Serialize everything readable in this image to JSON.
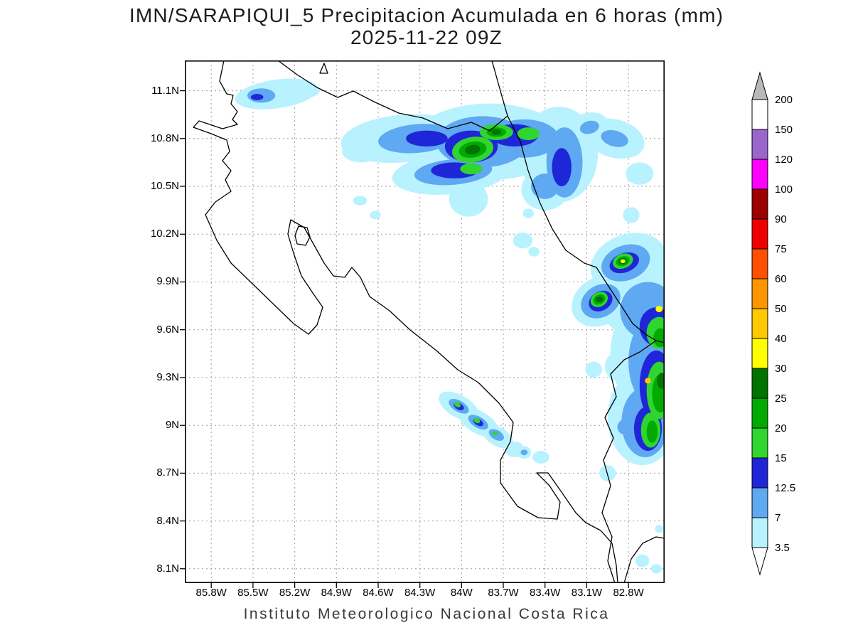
{
  "title": {
    "line1": "IMN/SARAPIQUI_5 Precipitacion Acumulada en 6 horas (mm)",
    "line2": "2025-11-22 09Z"
  },
  "caption": "Instituto Meteorologico Nacional Costa Rica",
  "axes": {
    "lat": [
      {
        "label": "11.1N",
        "value": 11.1
      },
      {
        "label": "10.8N",
        "value": 10.8
      },
      {
        "label": "10.5N",
        "value": 10.5
      },
      {
        "label": "10.2N",
        "value": 10.2
      },
      {
        "label": "9.9N",
        "value": 9.9
      },
      {
        "label": "9.6N",
        "value": 9.6
      },
      {
        "label": "9.3N",
        "value": 9.3
      },
      {
        "label": "9N",
        "value": 9.0
      },
      {
        "label": "8.7N",
        "value": 8.7
      },
      {
        "label": "8.4N",
        "value": 8.4
      },
      {
        "label": "8.1N",
        "value": 8.1
      }
    ],
    "lon": [
      {
        "label": "85.8W",
        "value": 85.8
      },
      {
        "label": "85.5W",
        "value": 85.5
      },
      {
        "label": "85.2W",
        "value": 85.2
      },
      {
        "label": "84.9W",
        "value": 84.9
      },
      {
        "label": "84.6W",
        "value": 84.6
      },
      {
        "label": "84.3W",
        "value": 84.3
      },
      {
        "label": "84W",
        "value": 84.0
      },
      {
        "label": "83.7W",
        "value": 83.7
      },
      {
        "label": "83.4W",
        "value": 83.4
      },
      {
        "label": "83.1W",
        "value": 83.1
      },
      {
        "label": "82.8W",
        "value": 82.8
      }
    ]
  },
  "colorbar": {
    "levels": [
      "3.5",
      "7",
      "12.5",
      "15",
      "20",
      "25",
      "30",
      "40",
      "50",
      "60",
      "75",
      "90",
      "100",
      "120",
      "150",
      "200"
    ],
    "colors": [
      "#b9f2ff",
      "#5fa8f2",
      "#1f26d8",
      "#30d530",
      "#00aa00",
      "#007300",
      "#ffff00",
      "#ffc800",
      "#ff9600",
      "#ff5000",
      "#ee0000",
      "#9c0000",
      "#ff00ff",
      "#9966cc",
      "#ffffff"
    ],
    "under_color": "#ffffff",
    "over_color": "#b8b8b8"
  },
  "chart_data": {
    "type": "heatmap",
    "subtype": "precipitation-contour-map",
    "units": "mm",
    "region": "Costa Rica",
    "extent": {
      "lon_west": 85.99,
      "lon_east": 82.54,
      "lat_north": 11.29,
      "lat_south": 8.01
    },
    "contour_levels_mm": [
      3.5,
      7,
      12.5,
      15,
      20,
      25,
      30,
      40,
      50,
      60,
      75,
      90,
      100,
      120,
      150,
      200
    ],
    "features": [
      {
        "lon": 85.33,
        "lat": 11.08,
        "rx": 0.3,
        "ry": 0.09,
        "rot": -8,
        "level": "3.5"
      },
      {
        "lon": 85.1,
        "lat": 11.1,
        "rx": 0.08,
        "ry": 0.04,
        "rot": 0,
        "level": "3.5"
      },
      {
        "lon": 84.42,
        "lat": 10.8,
        "rx": 0.45,
        "ry": 0.15,
        "rot": -5,
        "level": "3.5"
      },
      {
        "lon": 83.8,
        "lat": 10.78,
        "rx": 0.55,
        "ry": 0.24,
        "rot": 0,
        "level": "3.5"
      },
      {
        "lon": 83.3,
        "lat": 10.7,
        "rx": 0.28,
        "ry": 0.3,
        "rot": 0,
        "level": "3.5"
      },
      {
        "lon": 84.08,
        "lat": 10.58,
        "rx": 0.42,
        "ry": 0.13,
        "rot": -5,
        "level": "3.5"
      },
      {
        "lon": 83.95,
        "lat": 10.42,
        "rx": 0.14,
        "ry": 0.11,
        "rot": 0,
        "level": "3.5"
      },
      {
        "lon": 84.72,
        "lat": 10.72,
        "rx": 0.14,
        "ry": 0.07,
        "rot": 0,
        "level": "3.5"
      },
      {
        "lon": 83.1,
        "lat": 10.88,
        "rx": 0.15,
        "ry": 0.08,
        "rot": -15,
        "level": "3.5"
      },
      {
        "lon": 82.9,
        "lat": 10.8,
        "rx": 0.22,
        "ry": 0.12,
        "rot": 15,
        "level": "3.5"
      },
      {
        "lon": 82.72,
        "lat": 10.58,
        "rx": 0.1,
        "ry": 0.07,
        "rot": 0,
        "level": "3.5"
      },
      {
        "lon": 83.4,
        "lat": 10.48,
        "rx": 0.17,
        "ry": 0.13,
        "rot": 0,
        "level": "3.5"
      },
      {
        "lon": 84.73,
        "lat": 10.41,
        "rx": 0.05,
        "ry": 0.03,
        "rot": 0,
        "level": "3.5"
      },
      {
        "lon": 84.62,
        "lat": 10.32,
        "rx": 0.04,
        "ry": 0.025,
        "rot": 0,
        "level": "3.5"
      },
      {
        "lon": 83.56,
        "lat": 10.16,
        "rx": 0.07,
        "ry": 0.05,
        "rot": 0,
        "level": "3.5"
      },
      {
        "lon": 83.48,
        "lat": 10.09,
        "rx": 0.04,
        "ry": 0.03,
        "rot": 0,
        "level": "3.5"
      },
      {
        "lon": 82.78,
        "lat": 10.32,
        "rx": 0.06,
        "ry": 0.05,
        "rot": 0,
        "level": "3.5"
      },
      {
        "lon": 83.52,
        "lat": 10.33,
        "rx": 0.04,
        "ry": 0.03,
        "rot": 0,
        "level": "3.5"
      },
      {
        "lon": 82.8,
        "lat": 10.02,
        "rx": 0.28,
        "ry": 0.18,
        "rot": -20,
        "level": "3.5"
      },
      {
        "lon": 83.0,
        "lat": 9.78,
        "rx": 0.22,
        "ry": 0.15,
        "rot": -30,
        "level": "3.5"
      },
      {
        "lon": 82.72,
        "lat": 9.8,
        "rx": 0.3,
        "ry": 0.25,
        "rot": 0,
        "level": "3.5"
      },
      {
        "lon": 82.65,
        "lat": 9.45,
        "rx": 0.28,
        "ry": 0.35,
        "rot": 0,
        "level": "3.5"
      },
      {
        "lon": 82.7,
        "lat": 9.05,
        "rx": 0.25,
        "ry": 0.3,
        "rot": 0,
        "level": "3.5"
      },
      {
        "lon": 82.85,
        "lat": 9.37,
        "rx": 0.12,
        "ry": 0.1,
        "rot": 0,
        "level": "3.5"
      },
      {
        "lon": 83.05,
        "lat": 9.35,
        "rx": 0.06,
        "ry": 0.05,
        "rot": 0,
        "level": "3.5"
      },
      {
        "lon": 82.95,
        "lat": 8.7,
        "rx": 0.06,
        "ry": 0.05,
        "rot": 0,
        "level": "3.5"
      },
      {
        "lon": 84.02,
        "lat": 9.12,
        "rx": 0.16,
        "ry": 0.07,
        "rot": 30,
        "level": "3.5"
      },
      {
        "lon": 83.88,
        "lat": 9.02,
        "rx": 0.16,
        "ry": 0.07,
        "rot": 30,
        "level": "3.5"
      },
      {
        "lon": 83.74,
        "lat": 8.93,
        "rx": 0.12,
        "ry": 0.06,
        "rot": 30,
        "level": "3.5"
      },
      {
        "lon": 83.62,
        "lat": 8.85,
        "rx": 0.07,
        "ry": 0.05,
        "rot": 0,
        "level": "3.5"
      },
      {
        "lon": 83.55,
        "lat": 8.83,
        "rx": 0.05,
        "ry": 0.04,
        "rot": 0,
        "level": "3.5"
      },
      {
        "lon": 83.43,
        "lat": 8.8,
        "rx": 0.06,
        "ry": 0.04,
        "rot": 0,
        "level": "3.5"
      },
      {
        "lon": 82.7,
        "lat": 8.15,
        "rx": 0.05,
        "ry": 0.04,
        "rot": 0,
        "level": "3.5"
      },
      {
        "lon": 82.6,
        "lat": 8.1,
        "rx": 0.04,
        "ry": 0.03,
        "rot": 0,
        "level": "3.5"
      },
      {
        "lon": 82.58,
        "lat": 8.35,
        "rx": 0.03,
        "ry": 0.025,
        "rot": 0,
        "level": "3.5"
      },
      {
        "lon": 85.44,
        "lat": 11.07,
        "rx": 0.1,
        "ry": 0.045,
        "rot": 0,
        "level": "7"
      },
      {
        "lon": 84.32,
        "lat": 10.8,
        "rx": 0.28,
        "ry": 0.09,
        "rot": -5,
        "level": "7"
      },
      {
        "lon": 83.85,
        "lat": 10.78,
        "rx": 0.33,
        "ry": 0.16,
        "rot": 0,
        "level": "7"
      },
      {
        "lon": 83.55,
        "lat": 10.8,
        "rx": 0.25,
        "ry": 0.12,
        "rot": 0,
        "level": "7"
      },
      {
        "lon": 84.06,
        "lat": 10.59,
        "rx": 0.28,
        "ry": 0.08,
        "rot": -5,
        "level": "7"
      },
      {
        "lon": 83.26,
        "lat": 10.65,
        "rx": 0.13,
        "ry": 0.22,
        "rot": 0,
        "level": "7"
      },
      {
        "lon": 82.9,
        "lat": 10.8,
        "rx": 0.1,
        "ry": 0.05,
        "rot": 15,
        "level": "7"
      },
      {
        "lon": 83.08,
        "lat": 10.87,
        "rx": 0.07,
        "ry": 0.04,
        "rot": -15,
        "level": "7"
      },
      {
        "lon": 83.4,
        "lat": 10.5,
        "rx": 0.1,
        "ry": 0.08,
        "rot": 0,
        "level": "7"
      },
      {
        "lon": 82.82,
        "lat": 10.02,
        "rx": 0.18,
        "ry": 0.11,
        "rot": -20,
        "level": "7"
      },
      {
        "lon": 83.0,
        "lat": 9.78,
        "rx": 0.15,
        "ry": 0.1,
        "rot": -30,
        "level": "7"
      },
      {
        "lon": 82.66,
        "lat": 9.72,
        "rx": 0.2,
        "ry": 0.18,
        "rot": 0,
        "level": "7"
      },
      {
        "lon": 82.62,
        "lat": 9.4,
        "rx": 0.18,
        "ry": 0.28,
        "rot": 0,
        "level": "7"
      },
      {
        "lon": 82.68,
        "lat": 9.02,
        "rx": 0.17,
        "ry": 0.22,
        "rot": 0,
        "level": "7"
      },
      {
        "lon": 82.82,
        "lat": 8.99,
        "rx": 0.06,
        "ry": 0.05,
        "rot": 0,
        "level": "7"
      },
      {
        "lon": 84.02,
        "lat": 9.12,
        "rx": 0.08,
        "ry": 0.035,
        "rot": 30,
        "level": "7"
      },
      {
        "lon": 83.88,
        "lat": 9.02,
        "rx": 0.08,
        "ry": 0.035,
        "rot": 30,
        "level": "7"
      },
      {
        "lon": 83.75,
        "lat": 8.94,
        "rx": 0.06,
        "ry": 0.03,
        "rot": 30,
        "level": "7"
      },
      {
        "lon": 83.55,
        "lat": 8.83,
        "rx": 0.025,
        "ry": 0.018,
        "rot": 0,
        "level": "7"
      },
      {
        "lon": 85.47,
        "lat": 11.06,
        "rx": 0.045,
        "ry": 0.02,
        "rot": 0,
        "level": "12.5"
      },
      {
        "lon": 84.25,
        "lat": 10.8,
        "rx": 0.15,
        "ry": 0.05,
        "rot": 0,
        "level": "12.5"
      },
      {
        "lon": 83.93,
        "lat": 10.75,
        "rx": 0.19,
        "ry": 0.1,
        "rot": 0,
        "level": "12.5"
      },
      {
        "lon": 83.62,
        "lat": 10.82,
        "rx": 0.17,
        "ry": 0.07,
        "rot": 0,
        "level": "12.5"
      },
      {
        "lon": 84.05,
        "lat": 10.6,
        "rx": 0.17,
        "ry": 0.05,
        "rot": 0,
        "level": "12.5"
      },
      {
        "lon": 83.28,
        "lat": 10.62,
        "rx": 0.07,
        "ry": 0.12,
        "rot": 0,
        "level": "12.5"
      },
      {
        "lon": 82.83,
        "lat": 10.02,
        "rx": 0.11,
        "ry": 0.06,
        "rot": -20,
        "level": "12.5"
      },
      {
        "lon": 83.0,
        "lat": 9.78,
        "rx": 0.09,
        "ry": 0.06,
        "rot": -30,
        "level": "12.5"
      },
      {
        "lon": 82.6,
        "lat": 9.62,
        "rx": 0.12,
        "ry": 0.12,
        "rot": 0,
        "level": "12.5"
      },
      {
        "lon": 82.6,
        "lat": 9.25,
        "rx": 0.12,
        "ry": 0.22,
        "rot": 0,
        "level": "12.5"
      },
      {
        "lon": 82.66,
        "lat": 8.98,
        "rx": 0.1,
        "ry": 0.14,
        "rot": 0,
        "level": "12.5"
      },
      {
        "lon": 84.02,
        "lat": 9.12,
        "rx": 0.04,
        "ry": 0.02,
        "rot": 30,
        "level": "12.5"
      },
      {
        "lon": 83.88,
        "lat": 9.02,
        "rx": 0.04,
        "ry": 0.02,
        "rot": 30,
        "level": "12.5"
      },
      {
        "lon": 83.92,
        "lat": 10.73,
        "rx": 0.15,
        "ry": 0.08,
        "rot": -10,
        "level": "15"
      },
      {
        "lon": 83.75,
        "lat": 10.84,
        "rx": 0.12,
        "ry": 0.05,
        "rot": 0,
        "level": "15"
      },
      {
        "lon": 83.52,
        "lat": 10.83,
        "rx": 0.08,
        "ry": 0.04,
        "rot": 0,
        "level": "15"
      },
      {
        "lon": 83.93,
        "lat": 10.61,
        "rx": 0.08,
        "ry": 0.035,
        "rot": 0,
        "level": "15"
      },
      {
        "lon": 82.84,
        "lat": 10.03,
        "rx": 0.075,
        "ry": 0.045,
        "rot": -20,
        "level": "15"
      },
      {
        "lon": 83.01,
        "lat": 9.79,
        "rx": 0.065,
        "ry": 0.045,
        "rot": -30,
        "level": "15"
      },
      {
        "lon": 82.58,
        "lat": 9.58,
        "rx": 0.09,
        "ry": 0.1,
        "rot": 0,
        "level": "15"
      },
      {
        "lon": 82.58,
        "lat": 9.22,
        "rx": 0.09,
        "ry": 0.18,
        "rot": 0,
        "level": "15"
      },
      {
        "lon": 82.64,
        "lat": 8.97,
        "rx": 0.07,
        "ry": 0.11,
        "rot": 0,
        "level": "15"
      },
      {
        "lon": 84.03,
        "lat": 9.13,
        "rx": 0.025,
        "ry": 0.015,
        "rot": 30,
        "level": "15"
      },
      {
        "lon": 83.89,
        "lat": 9.03,
        "rx": 0.025,
        "ry": 0.015,
        "rot": 30,
        "level": "15"
      },
      {
        "lon": 83.76,
        "lat": 8.95,
        "rx": 0.02,
        "ry": 0.012,
        "rot": 0,
        "level": "15"
      },
      {
        "lon": 83.92,
        "lat": 10.73,
        "rx": 0.1,
        "ry": 0.05,
        "rot": -10,
        "level": "20"
      },
      {
        "lon": 83.75,
        "lat": 10.84,
        "rx": 0.07,
        "ry": 0.03,
        "rot": 0,
        "level": "20"
      },
      {
        "lon": 82.84,
        "lat": 10.03,
        "rx": 0.05,
        "ry": 0.03,
        "rot": -20,
        "level": "20"
      },
      {
        "lon": 83.01,
        "lat": 9.79,
        "rx": 0.045,
        "ry": 0.03,
        "rot": -30,
        "level": "20"
      },
      {
        "lon": 82.57,
        "lat": 9.2,
        "rx": 0.06,
        "ry": 0.12,
        "rot": 0,
        "level": "20"
      },
      {
        "lon": 82.57,
        "lat": 9.55,
        "rx": 0.05,
        "ry": 0.06,
        "rot": 0,
        "level": "20"
      },
      {
        "lon": 82.63,
        "lat": 8.96,
        "rx": 0.04,
        "ry": 0.07,
        "rot": 0,
        "level": "20"
      },
      {
        "lon": 83.92,
        "lat": 10.73,
        "rx": 0.055,
        "ry": 0.03,
        "rot": -10,
        "level": "25"
      },
      {
        "lon": 83.75,
        "lat": 10.84,
        "rx": 0.035,
        "ry": 0.018,
        "rot": 0,
        "level": "25"
      },
      {
        "lon": 82.56,
        "lat": 9.28,
        "rx": 0.035,
        "ry": 0.05,
        "rot": 0,
        "level": "25"
      },
      {
        "lon": 83.01,
        "lat": 9.79,
        "rx": 0.028,
        "ry": 0.018,
        "rot": 0,
        "level": "25"
      },
      {
        "lon": 82.84,
        "lat": 10.03,
        "rx": 0.03,
        "ry": 0.018,
        "rot": 0,
        "level": "25"
      },
      {
        "lon": 82.84,
        "lat": 10.03,
        "rx": 0.018,
        "ry": 0.012,
        "rot": 0,
        "level": "30"
      },
      {
        "lon": 82.58,
        "lat": 9.73,
        "rx": 0.025,
        "ry": 0.02,
        "rot": 0,
        "level": "30"
      },
      {
        "lon": 82.66,
        "lat": 9.28,
        "rx": 0.022,
        "ry": 0.018,
        "rot": 0,
        "level": "40"
      }
    ]
  }
}
